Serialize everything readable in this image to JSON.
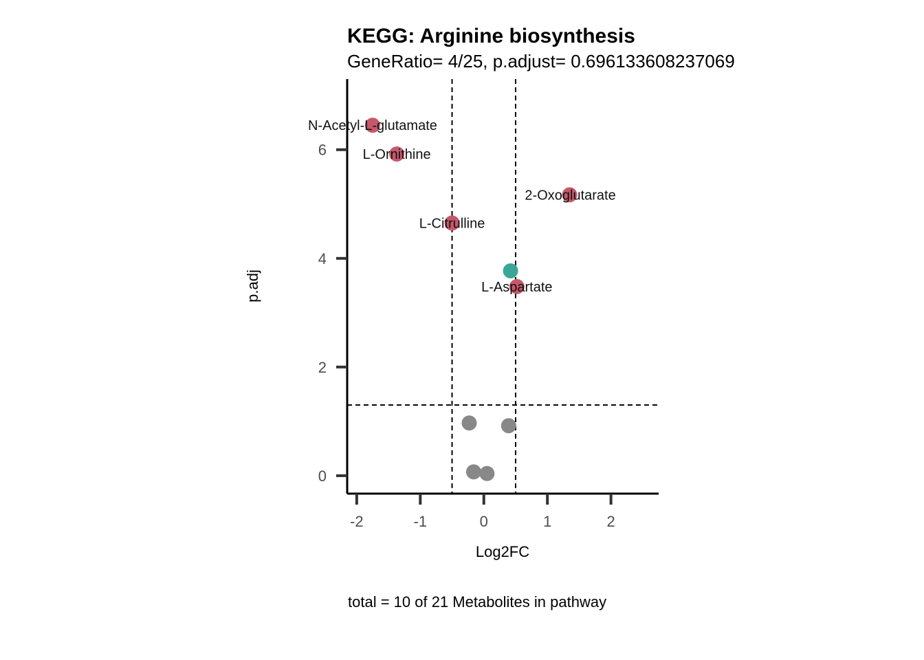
{
  "chart_data": {
    "type": "scatter",
    "title": "KEGG: Arginine biosynthesis",
    "subtitle": "GeneRatio= 4/25, p.adjust= 0.696133608237069",
    "xlabel": "Log2FC",
    "ylabel": "p.adj",
    "caption": "total = 10 of 21 Metabolites in pathway",
    "xlim": [
      -2.15,
      2.75
    ],
    "ylim": [
      -0.33,
      7.3
    ],
    "xticks": [
      -2,
      -1,
      0,
      1,
      2
    ],
    "xtick_labels": [
      "-2",
      "-1",
      "0",
      "1",
      "2"
    ],
    "yticks": [
      0,
      2,
      4,
      6
    ],
    "ytick_labels": [
      "0",
      "2",
      "4",
      "6"
    ],
    "vlines": [
      -0.5,
      0.5
    ],
    "hlines": [
      1.3
    ],
    "grid": false,
    "colors": {
      "up": "#c5596a",
      "down": "#3aa796",
      "ns": "#888888"
    },
    "points": [
      {
        "x": -1.75,
        "y": 6.45,
        "group": "up",
        "label": "N-Acetyl-L-glutamate"
      },
      {
        "x": -1.37,
        "y": 5.92,
        "group": "up",
        "label": "L-Ornithine"
      },
      {
        "x": 1.35,
        "y": 5.17,
        "group": "up",
        "label": "2-Oxoglutarate"
      },
      {
        "x": -0.5,
        "y": 4.65,
        "group": "up",
        "label": "L-Citrulline"
      },
      {
        "x": 0.52,
        "y": 3.48,
        "group": "up",
        "label": "L-Aspartate"
      },
      {
        "x": 0.42,
        "y": 3.77,
        "group": "down",
        "label": ""
      },
      {
        "x": -0.23,
        "y": 0.97,
        "group": "ns",
        "label": ""
      },
      {
        "x": 0.39,
        "y": 0.92,
        "group": "ns",
        "label": ""
      },
      {
        "x": -0.16,
        "y": 0.07,
        "group": "ns",
        "label": ""
      },
      {
        "x": 0.05,
        "y": 0.04,
        "group": "ns",
        "label": ""
      }
    ]
  }
}
